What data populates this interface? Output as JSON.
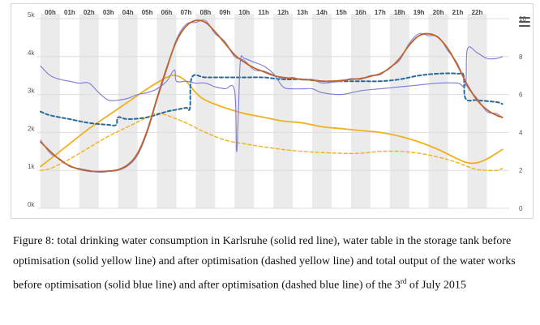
{
  "caption": {
    "part1": "Figure 8: total drinking water consumption in Karlsruhe (solid red line), water table in the storage tank before optimisation (solid yellow line) and after optimisation (dashed yellow line) and total output of the water works before optimisation (solid blue line) and after optimisation (dashed blue line) of the 3",
    "sup": "rd",
    "part2": " of July 2015"
  },
  "menu": {
    "icon": "hamburger-menu-icon"
  },
  "chart_data": {
    "type": "line",
    "x_ticks": [
      "00h",
      "01h",
      "02h",
      "03h",
      "04h",
      "05h",
      "06h",
      "07h",
      "08h",
      "09h",
      "10h",
      "11h",
      "12h",
      "13h",
      "14h",
      "15h",
      "16h",
      "17h",
      "18h",
      "19h",
      "20h",
      "21h",
      "22h"
    ],
    "x_range": [
      -0.5,
      23.4
    ],
    "y_left_ticks": [
      "0k",
      "1k",
      "2k",
      "3k",
      "4k",
      "5k"
    ],
    "y_left_range": [
      0,
      5
    ],
    "y_right_ticks": [
      "0",
      "2",
      "4",
      "6",
      "8",
      "10"
    ],
    "y_right_range": [
      0,
      10
    ],
    "grid": true,
    "legend": "none",
    "colors": {
      "consumption": "#c0622b",
      "consumption_overlay": "#8a86d0",
      "output_before": "#7b7bd8",
      "output_after": "#2a6a9a",
      "tank_before": "#f2b01e",
      "tank_after": "#f2b01e",
      "band": "#ebebeb"
    },
    "series": [
      {
        "key": "consumption",
        "style": "solid",
        "axis": "left",
        "x": [
          -0.5,
          0,
          0.5,
          1,
          1.5,
          2,
          2.5,
          3,
          3.5,
          4,
          4.5,
          5,
          5.5,
          6,
          6.5,
          7,
          7.5,
          8,
          8.5,
          9,
          9.5,
          10,
          10.5,
          11,
          11.5,
          12,
          12.5,
          13,
          13.5,
          14,
          14.5,
          15,
          15.5,
          16,
          16.5,
          17,
          17.5,
          18,
          18.5,
          19,
          19.5,
          20,
          20.5,
          21,
          21.5,
          22,
          22.5,
          23,
          23.3
        ],
        "y": [
          1.75,
          1.5,
          1.28,
          1.12,
          1.03,
          0.98,
          0.97,
          0.98,
          1.02,
          1.15,
          1.45,
          2.05,
          2.9,
          3.7,
          4.4,
          4.8,
          4.95,
          4.9,
          4.65,
          4.35,
          4.05,
          3.85,
          3.7,
          3.6,
          3.5,
          3.45,
          3.42,
          3.4,
          3.38,
          3.35,
          3.35,
          3.37,
          3.4,
          3.42,
          3.48,
          3.55,
          3.7,
          3.95,
          4.3,
          4.55,
          4.6,
          4.5,
          4.2,
          3.75,
          3.25,
          2.85,
          2.6,
          2.45,
          2.4
        ]
      },
      {
        "key": "consumption_overlay",
        "style": "solid",
        "axis": "left",
        "x": [
          -0.5,
          0,
          0.5,
          1,
          1.5,
          2,
          2.5,
          3,
          3.5,
          4,
          4.5,
          5,
          5.5,
          6,
          6.5,
          7,
          7.5,
          8,
          8.5,
          9,
          9.5,
          10,
          10.5,
          11,
          11.5,
          12,
          12.5,
          13,
          13.5,
          14,
          14.5,
          15,
          15.5,
          16,
          16.5,
          17,
          17.5,
          18,
          18.5,
          19,
          19.5,
          20,
          20.5,
          21,
          21.5,
          22,
          22.5,
          23,
          23.3
        ],
        "y": [
          1.8,
          1.45,
          1.3,
          1.1,
          1.05,
          1.0,
          0.95,
          0.97,
          1.0,
          1.12,
          1.4,
          2.0,
          2.85,
          3.65,
          4.45,
          4.85,
          4.9,
          4.95,
          4.6,
          4.4,
          4.0,
          3.9,
          3.65,
          3.62,
          3.52,
          3.42,
          3.45,
          3.38,
          3.4,
          3.3,
          3.32,
          3.35,
          3.42,
          3.4,
          3.5,
          3.52,
          3.72,
          3.9,
          4.35,
          4.6,
          4.55,
          4.52,
          4.15,
          3.8,
          3.2,
          2.9,
          2.55,
          2.5,
          2.38
        ]
      },
      {
        "key": "output_before",
        "style": "solid",
        "axis": "left",
        "x": [
          -0.5,
          0,
          0.5,
          1,
          1.5,
          2,
          2.5,
          3,
          3.5,
          4,
          4.5,
          5,
          5.5,
          6,
          6.4,
          6.5,
          7,
          7.5,
          8,
          8.5,
          9,
          9.5,
          9.6,
          9.7,
          9.8,
          10,
          10.5,
          11,
          11.5,
          12,
          12.5,
          13,
          13.5,
          14,
          15,
          16,
          17,
          18,
          19,
          20,
          21,
          21.4,
          21.5,
          22,
          22.5,
          23,
          23.3
        ],
        "y": [
          3.75,
          3.5,
          3.4,
          3.35,
          3.3,
          3.3,
          3.05,
          2.85,
          2.85,
          2.9,
          3.0,
          3.05,
          3.15,
          3.35,
          3.65,
          3.35,
          3.35,
          3.3,
          3.3,
          3.2,
          3.15,
          3.1,
          1.5,
          2.6,
          3.9,
          3.95,
          3.85,
          3.75,
          3.55,
          3.2,
          3.15,
          3.15,
          3.15,
          3.05,
          3.0,
          3.1,
          3.15,
          3.2,
          3.25,
          3.3,
          3.3,
          3.25,
          4.2,
          4.1,
          3.95,
          3.95,
          4.0
        ]
      },
      {
        "key": "output_after",
        "style": "dashed",
        "axis": "left",
        "x": [
          -0.5,
          0,
          1,
          2,
          3,
          3.4,
          3.5,
          4,
          5,
          6,
          6.5,
          7,
          7.2,
          7.3,
          8,
          9,
          10,
          11,
          12,
          13,
          14,
          15,
          16,
          17,
          18,
          19,
          20,
          21,
          21.3,
          21.4,
          22,
          23,
          23.3
        ],
        "y": [
          2.55,
          2.45,
          2.35,
          2.25,
          2.2,
          2.2,
          2.4,
          2.35,
          2.4,
          2.55,
          2.6,
          2.65,
          2.65,
          3.45,
          3.45,
          3.45,
          3.45,
          3.45,
          3.4,
          3.4,
          3.35,
          3.35,
          3.35,
          3.35,
          3.4,
          3.5,
          3.55,
          3.55,
          3.5,
          2.9,
          2.85,
          2.8,
          2.75
        ]
      },
      {
        "key": "tank_before",
        "style": "solid",
        "axis": "left",
        "x": [
          -0.5,
          0,
          1,
          2,
          3,
          4,
          5,
          6,
          6.5,
          7,
          7.5,
          8,
          9,
          10,
          11,
          12,
          13,
          14,
          15,
          16,
          17,
          18,
          19,
          20,
          21,
          21.5,
          22,
          22.5,
          23,
          23.3
        ],
        "y": [
          1.1,
          1.3,
          1.7,
          2.1,
          2.45,
          2.8,
          3.15,
          3.45,
          3.5,
          3.35,
          3.05,
          2.85,
          2.65,
          2.5,
          2.4,
          2.3,
          2.25,
          2.15,
          2.1,
          2.05,
          2.0,
          1.9,
          1.75,
          1.55,
          1.3,
          1.2,
          1.2,
          1.3,
          1.45,
          1.55
        ]
      },
      {
        "key": "tank_after",
        "style": "dashed",
        "axis": "left",
        "x": [
          -0.5,
          0,
          1,
          2,
          3,
          4,
          5,
          5.5,
          6,
          7,
          8,
          9,
          10,
          11,
          12,
          13,
          14,
          15,
          16,
          17,
          18,
          19,
          20,
          21,
          21.5,
          22,
          22.5,
          23,
          23.3
        ],
        "y": [
          1.0,
          1.05,
          1.3,
          1.6,
          1.9,
          2.15,
          2.4,
          2.5,
          2.45,
          2.25,
          2.0,
          1.8,
          1.7,
          1.62,
          1.55,
          1.5,
          1.47,
          1.45,
          1.45,
          1.5,
          1.5,
          1.45,
          1.35,
          1.2,
          1.1,
          1.02,
          1.0,
          1.0,
          1.05
        ]
      }
    ]
  }
}
